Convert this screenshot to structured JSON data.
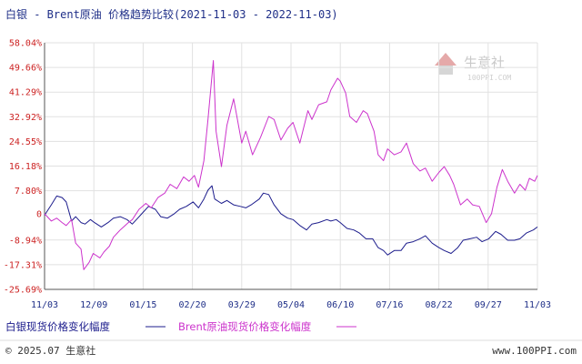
{
  "title": "白银 - Brent原油 价格趋势比较(2021-11-03 - 2022-11-03)",
  "watermark": {
    "name": "生意社",
    "url": "100PPI.COM"
  },
  "footer": {
    "left": "© 2025.07 生意社",
    "right": "www.100PPI.com"
  },
  "colors": {
    "silver": "#1c1c8c",
    "brent": "#cc33cc",
    "tick": "#cc2222",
    "axis_text": "#1f2f88"
  },
  "chart_data": {
    "type": "line",
    "ylim": [
      -25.69,
      58.04
    ],
    "yticks": [
      "58.04%",
      "49.66%",
      "41.29%",
      "32.92%",
      "24.55%",
      "16.18%",
      "7.80%",
      "0",
      "-8.94%",
      "-17.31%",
      "-25.69%"
    ],
    "ytick_values": [
      58.04,
      49.66,
      41.29,
      32.92,
      24.55,
      16.18,
      7.8,
      0,
      -8.94,
      -17.31,
      -25.69
    ],
    "xticks": [
      "11/03",
      "12/09",
      "01/15",
      "02/20",
      "03/29",
      "05/04",
      "06/10",
      "07/16",
      "08/22",
      "09/27",
      "11/03"
    ],
    "x_range": [
      "2021-11-03",
      "2022-11-03"
    ],
    "series": [
      {
        "name": "白银现货价格变化幅度",
        "color": "#1c1c8c",
        "points": [
          [
            "2021-11-03",
            -0.5
          ],
          [
            "2021-11-08",
            3
          ],
          [
            "2021-11-12",
            6
          ],
          [
            "2021-11-16",
            5.5
          ],
          [
            "2021-11-19",
            4
          ],
          [
            "2021-11-23",
            -2.5
          ],
          [
            "2021-11-26",
            -1
          ],
          [
            "2021-11-30",
            -3
          ],
          [
            "2021-12-03",
            -3.5
          ],
          [
            "2021-12-07",
            -2
          ],
          [
            "2021-12-10",
            -3
          ],
          [
            "2021-12-15",
            -4.5
          ],
          [
            "2021-12-20",
            -3
          ],
          [
            "2021-12-24",
            -1.5
          ],
          [
            "2021-12-29",
            -1
          ],
          [
            "2022-01-03",
            -2
          ],
          [
            "2022-01-07",
            -3.5
          ],
          [
            "2022-01-11",
            -1.5
          ],
          [
            "2022-01-14",
            0
          ],
          [
            "2022-01-19",
            2.5
          ],
          [
            "2022-01-24",
            1.5
          ],
          [
            "2022-01-28",
            -1
          ],
          [
            "2022-02-02",
            -1.5
          ],
          [
            "2022-02-07",
            0
          ],
          [
            "2022-02-11",
            1.5
          ],
          [
            "2022-02-16",
            2.5
          ],
          [
            "2022-02-21",
            4
          ],
          [
            "2022-02-25",
            2
          ],
          [
            "2022-03-01",
            5
          ],
          [
            "2022-03-04",
            8
          ],
          [
            "2022-03-07",
            9.5
          ],
          [
            "2022-03-09",
            5
          ],
          [
            "2022-03-14",
            3.5
          ],
          [
            "2022-03-18",
            4.5
          ],
          [
            "2022-03-23",
            3
          ],
          [
            "2022-03-28",
            2.5
          ],
          [
            "2022-04-01",
            2
          ],
          [
            "2022-04-05",
            3
          ],
          [
            "2022-04-11",
            5
          ],
          [
            "2022-04-14",
            7
          ],
          [
            "2022-04-18",
            6.5
          ],
          [
            "2022-04-22",
            3
          ],
          [
            "2022-04-27",
            0
          ],
          [
            "2022-05-02",
            -1.5
          ],
          [
            "2022-05-06",
            -2
          ],
          [
            "2022-05-11",
            -4
          ],
          [
            "2022-05-16",
            -5.5
          ],
          [
            "2022-05-20",
            -3.5
          ],
          [
            "2022-05-25",
            -3
          ],
          [
            "2022-05-31",
            -2
          ],
          [
            "2022-06-03",
            -2.5
          ],
          [
            "2022-06-07",
            -2
          ],
          [
            "2022-06-10",
            -3
          ],
          [
            "2022-06-15",
            -5
          ],
          [
            "2022-06-20",
            -5.5
          ],
          [
            "2022-06-24",
            -6.5
          ],
          [
            "2022-06-29",
            -8.5
          ],
          [
            "2022-07-04",
            -8.5
          ],
          [
            "2022-07-08",
            -11.5
          ],
          [
            "2022-07-12",
            -12.5
          ],
          [
            "2022-07-15",
            -14
          ],
          [
            "2022-07-20",
            -12.5
          ],
          [
            "2022-07-25",
            -12.5
          ],
          [
            "2022-07-29",
            -10
          ],
          [
            "2022-08-03",
            -9.5
          ],
          [
            "2022-08-08",
            -8.5
          ],
          [
            "2022-08-12",
            -7.5
          ],
          [
            "2022-08-17",
            -10
          ],
          [
            "2022-08-22",
            -11.5
          ],
          [
            "2022-08-26",
            -12.5
          ],
          [
            "2022-08-31",
            -13.5
          ],
          [
            "2022-09-05",
            -11.5
          ],
          [
            "2022-09-09",
            -9
          ],
          [
            "2022-09-14",
            -8.5
          ],
          [
            "2022-09-19",
            -8
          ],
          [
            "2022-09-23",
            -9.5
          ],
          [
            "2022-09-28",
            -8.5
          ],
          [
            "2022-10-03",
            -6
          ],
          [
            "2022-10-07",
            -7
          ],
          [
            "2022-10-12",
            -9
          ],
          [
            "2022-10-17",
            -9
          ],
          [
            "2022-10-21",
            -8.5
          ],
          [
            "2022-10-26",
            -6.5
          ],
          [
            "2022-10-31",
            -5.5
          ],
          [
            "2022-11-03",
            -4.5
          ]
        ]
      },
      {
        "name": "Brent原油现货价格变化幅度",
        "color": "#cc33cc",
        "points": [
          [
            "2021-11-03",
            0
          ],
          [
            "2021-11-08",
            -2.5
          ],
          [
            "2021-11-12",
            -1.5
          ],
          [
            "2021-11-16",
            -3
          ],
          [
            "2021-11-19",
            -4
          ],
          [
            "2021-11-23",
            -2
          ],
          [
            "2021-11-26",
            -10
          ],
          [
            "2021-11-30",
            -12
          ],
          [
            "2021-12-02",
            -19
          ],
          [
            "2021-12-06",
            -16.5
          ],
          [
            "2021-12-09",
            -13.5
          ],
          [
            "2021-12-14",
            -15
          ],
          [
            "2021-12-17",
            -13
          ],
          [
            "2021-12-21",
            -11
          ],
          [
            "2021-12-24",
            -8
          ],
          [
            "2021-12-29",
            -5.5
          ],
          [
            "2022-01-04",
            -3
          ],
          [
            "2022-01-07",
            -2
          ],
          [
            "2022-01-12",
            1.5
          ],
          [
            "2022-01-17",
            3.5
          ],
          [
            "2022-01-21",
            2
          ],
          [
            "2022-01-26",
            5.5
          ],
          [
            "2022-01-31",
            7
          ],
          [
            "2022-02-04",
            10
          ],
          [
            "2022-02-09",
            8.5
          ],
          [
            "2022-02-14",
            12.5
          ],
          [
            "2022-02-18",
            11
          ],
          [
            "2022-02-22",
            13
          ],
          [
            "2022-02-25",
            9
          ],
          [
            "2022-03-01",
            18
          ],
          [
            "2022-03-04",
            32
          ],
          [
            "2022-03-08",
            52
          ],
          [
            "2022-03-10",
            28
          ],
          [
            "2022-03-14",
            16
          ],
          [
            "2022-03-18",
            30
          ],
          [
            "2022-03-23",
            39
          ],
          [
            "2022-03-25",
            34
          ],
          [
            "2022-03-29",
            24
          ],
          [
            "2022-04-01",
            28
          ],
          [
            "2022-04-06",
            20
          ],
          [
            "2022-04-12",
            26
          ],
          [
            "2022-04-18",
            33
          ],
          [
            "2022-04-22",
            32
          ],
          [
            "2022-04-27",
            25
          ],
          [
            "2022-05-02",
            29
          ],
          [
            "2022-05-06",
            31
          ],
          [
            "2022-05-11",
            24
          ],
          [
            "2022-05-17",
            35
          ],
          [
            "2022-05-20",
            32
          ],
          [
            "2022-05-25",
            37
          ],
          [
            "2022-05-31",
            38
          ],
          [
            "2022-06-03",
            42
          ],
          [
            "2022-06-08",
            46
          ],
          [
            "2022-06-10",
            45
          ],
          [
            "2022-06-14",
            41
          ],
          [
            "2022-06-17",
            33
          ],
          [
            "2022-06-22",
            31
          ],
          [
            "2022-06-27",
            35
          ],
          [
            "2022-06-30",
            34
          ],
          [
            "2022-07-05",
            28
          ],
          [
            "2022-07-08",
            20
          ],
          [
            "2022-07-12",
            18
          ],
          [
            "2022-07-15",
            22
          ],
          [
            "2022-07-20",
            20
          ],
          [
            "2022-07-25",
            21
          ],
          [
            "2022-07-29",
            24
          ],
          [
            "2022-08-03",
            17
          ],
          [
            "2022-08-08",
            14.5
          ],
          [
            "2022-08-12",
            15.5
          ],
          [
            "2022-08-17",
            11
          ],
          [
            "2022-08-22",
            14
          ],
          [
            "2022-08-26",
            16
          ],
          [
            "2022-08-30",
            13
          ],
          [
            "2022-09-02",
            10
          ],
          [
            "2022-09-07",
            3
          ],
          [
            "2022-09-12",
            5
          ],
          [
            "2022-09-16",
            3
          ],
          [
            "2022-09-21",
            2.5
          ],
          [
            "2022-09-26",
            -3
          ],
          [
            "2022-09-30",
            0
          ],
          [
            "2022-10-04",
            9
          ],
          [
            "2022-10-08",
            15
          ],
          [
            "2022-10-12",
            11
          ],
          [
            "2022-10-17",
            7
          ],
          [
            "2022-10-21",
            10
          ],
          [
            "2022-10-25",
            8
          ],
          [
            "2022-10-28",
            12
          ],
          [
            "2022-11-01",
            11
          ],
          [
            "2022-11-03",
            13
          ]
        ]
      }
    ]
  }
}
